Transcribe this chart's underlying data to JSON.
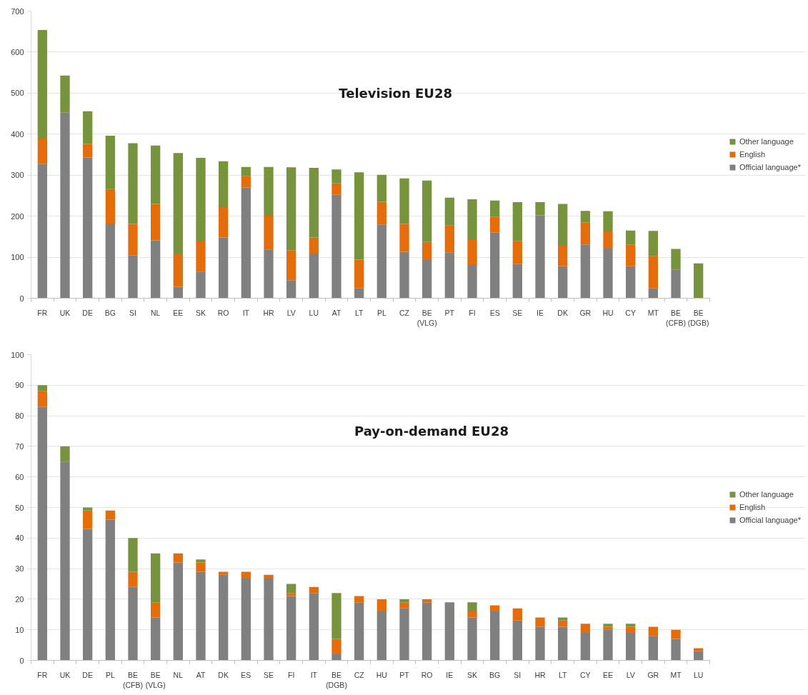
{
  "chart_data": [
    {
      "type": "bar",
      "title": "Television EU28",
      "stacked": true,
      "grid": "y",
      "legend": "right",
      "categories": [
        "FR",
        "UK",
        "DE",
        "BG",
        "SI",
        "NL",
        "EE",
        "SK",
        "RO",
        "IT",
        "HR",
        "LV",
        "LU",
        "AT",
        "LT",
        "PL",
        "CZ",
        "BE (VLG)",
        "PT",
        "FI",
        "ES",
        "SE",
        "IE",
        "DK",
        "GR",
        "HU",
        "CY",
        "MT",
        "BE (CFB)",
        "BE (DGB)"
      ],
      "ylim": [
        0,
        700
      ],
      "yticks": [
        0,
        100,
        200,
        300,
        400,
        500,
        600,
        700
      ],
      "series": [
        {
          "name": "Official language*",
          "color": "#808080",
          "values": [
            327,
            453,
            343,
            182,
            105,
            141,
            28,
            65,
            148,
            270,
            119,
            44,
            109,
            252,
            24,
            180,
            113,
            93,
            112,
            81,
            160,
            84,
            202,
            78,
            131,
            121,
            78,
            24,
            70,
            0
          ]
        },
        {
          "name": "English",
          "color": "#e46c0a",
          "values": [
            62,
            0,
            33,
            84,
            76,
            89,
            81,
            75,
            74,
            28,
            82,
            73,
            39,
            28,
            70,
            55,
            68,
            44,
            65,
            61,
            38,
            55,
            0,
            50,
            54,
            42,
            53,
            79,
            0,
            0
          ]
        },
        {
          "name": "Other language",
          "color": "#77933c",
          "values": [
            265,
            90,
            80,
            130,
            197,
            142,
            245,
            202,
            112,
            22,
            119,
            202,
            170,
            34,
            213,
            66,
            111,
            150,
            68,
            99,
            40,
            95,
            32,
            102,
            28,
            49,
            34,
            61,
            50,
            85
          ]
        }
      ]
    },
    {
      "type": "bar",
      "title": "Pay-on-demand EU28",
      "stacked": true,
      "grid": "y",
      "legend": "right",
      "categories": [
        "FR",
        "UK",
        "DE",
        "PL",
        "BE (CFB)",
        "BE (VLG)",
        "NL",
        "AT",
        "DK",
        "ES",
        "SE",
        "FI",
        "IT",
        "BE (DGB)",
        "CZ",
        "HU",
        "PT",
        "RO",
        "IE",
        "SK",
        "BG",
        "SI",
        "HR",
        "LT",
        "CY",
        "EE",
        "LV",
        "GR",
        "MT",
        "LU"
      ],
      "ylim": [
        0,
        100
      ],
      "yticks": [
        0,
        10,
        20,
        30,
        40,
        50,
        60,
        70,
        80,
        90,
        100
      ],
      "series": [
        {
          "name": "Official language*",
          "color": "#808080",
          "values": [
            83,
            65,
            43,
            46,
            24,
            14,
            32,
            29,
            28,
            27,
            27,
            21,
            22,
            2,
            19,
            16,
            17,
            19,
            19,
            14,
            16,
            13,
            11,
            11,
            9,
            10,
            9,
            8,
            7,
            3
          ]
        },
        {
          "name": "English",
          "color": "#e46c0a",
          "values": [
            5,
            0,
            6,
            3,
            5,
            5,
            3,
            3,
            1,
            2,
            1,
            1,
            2,
            5,
            2,
            4,
            2,
            1,
            0,
            2,
            2,
            4,
            3,
            2,
            3,
            1,
            2,
            3,
            3,
            1
          ]
        },
        {
          "name": "Other language",
          "color": "#77933c",
          "values": [
            2,
            5,
            1,
            0,
            11,
            16,
            0,
            1,
            0,
            0,
            0,
            3,
            0,
            15,
            0,
            0,
            1,
            0,
            0,
            3,
            0,
            0,
            0,
            1,
            0,
            1,
            1,
            0,
            0,
            0
          ]
        }
      ]
    }
  ]
}
